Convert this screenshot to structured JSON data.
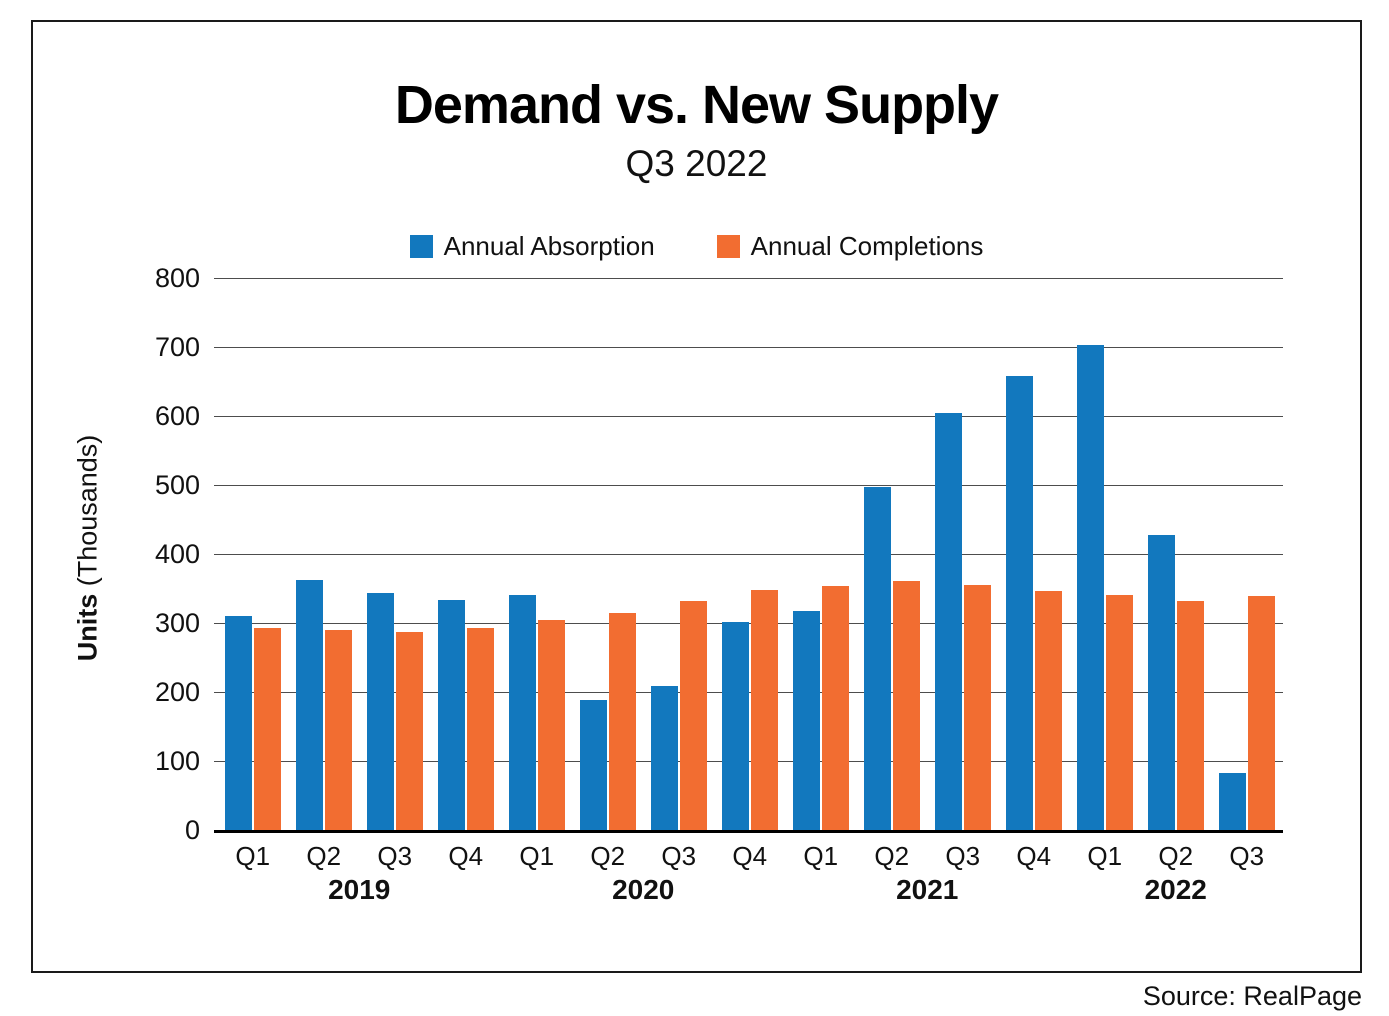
{
  "figure": {
    "title": "Demand vs. New Supply",
    "subtitle": "Q3 2022",
    "source": "Source: RealPage"
  },
  "legend": {
    "items": [
      {
        "label": "Annual Absorption",
        "color": "#1278BE"
      },
      {
        "label": "Annual Completions",
        "color": "#F26D31"
      }
    ]
  },
  "y_axis": {
    "title_bold": "Units",
    "title_regular": " (Thousands)",
    "ticks": [
      800,
      700,
      600,
      500,
      400,
      300,
      200,
      100,
      0
    ]
  },
  "chart_data": {
    "type": "bar",
    "title": "Demand vs. New Supply",
    "subtitle": "Q3 2022",
    "xlabel": "",
    "ylabel": "Units (Thousands)",
    "ylim": [
      0,
      800
    ],
    "grid": true,
    "legend_position": "top",
    "categories": [
      "Q1",
      "Q2",
      "Q3",
      "Q4",
      "Q1",
      "Q2",
      "Q3",
      "Q4",
      "Q1",
      "Q2",
      "Q3",
      "Q4",
      "Q1",
      "Q2",
      "Q3"
    ],
    "year_groups": [
      {
        "label": "2019",
        "start": 0,
        "count": 4
      },
      {
        "label": "2020",
        "start": 4,
        "count": 4
      },
      {
        "label": "2021",
        "start": 8,
        "count": 4
      },
      {
        "label": "2022",
        "start": 12,
        "count": 3
      }
    ],
    "series": [
      {
        "name": "Annual Absorption",
        "color": "#1278BE",
        "values": [
          310,
          362,
          344,
          334,
          340,
          188,
          209,
          302,
          317,
          497,
          605,
          658,
          703,
          428,
          83
        ]
      },
      {
        "name": "Annual Completions",
        "color": "#F26D31",
        "values": [
          293,
          290,
          287,
          293,
          305,
          314,
          332,
          348,
          353,
          361,
          355,
          346,
          341,
          332,
          339
        ]
      }
    ]
  }
}
